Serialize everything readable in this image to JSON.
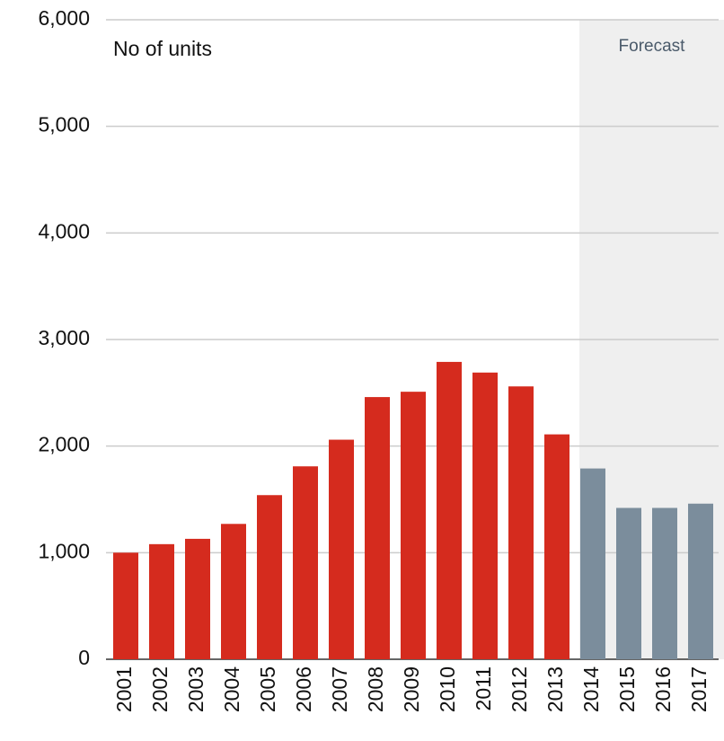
{
  "chart_data": {
    "type": "bar",
    "annotation": "No of units",
    "forecast": {
      "label": "Forecast",
      "from": "2014",
      "color": "#efefef"
    },
    "categories": [
      "2001",
      "2002",
      "2003",
      "2004",
      "2005",
      "2006",
      "2007",
      "2008",
      "2009",
      "2010",
      "2011",
      "2012",
      "2013",
      "2014",
      "2015",
      "2016",
      "2017"
    ],
    "values": [
      1000,
      1080,
      1130,
      1270,
      1540,
      1810,
      2060,
      2460,
      2510,
      2790,
      2690,
      2560,
      2110,
      1790,
      1420,
      1420,
      1460
    ],
    "colors": [
      "#d52b1e",
      "#d52b1e",
      "#d52b1e",
      "#d52b1e",
      "#d52b1e",
      "#d52b1e",
      "#d52b1e",
      "#d52b1e",
      "#d52b1e",
      "#d52b1e",
      "#d52b1e",
      "#d52b1e",
      "#d52b1e",
      "#7b8d9c",
      "#7b8d9c",
      "#7b8d9c",
      "#7b8d9c"
    ],
    "ylim": [
      0,
      6000
    ],
    "yticks": [
      0,
      {
        "value": 1000,
        "label": "1,000"
      },
      {
        "value": 2000,
        "label": "2,000"
      },
      {
        "value": 3000,
        "label": "3,000"
      },
      {
        "value": 4000,
        "label": "4,000"
      },
      {
        "value": 5000,
        "label": "5,000"
      },
      {
        "value": 6000,
        "label": "6,000"
      }
    ],
    "grid": true
  }
}
